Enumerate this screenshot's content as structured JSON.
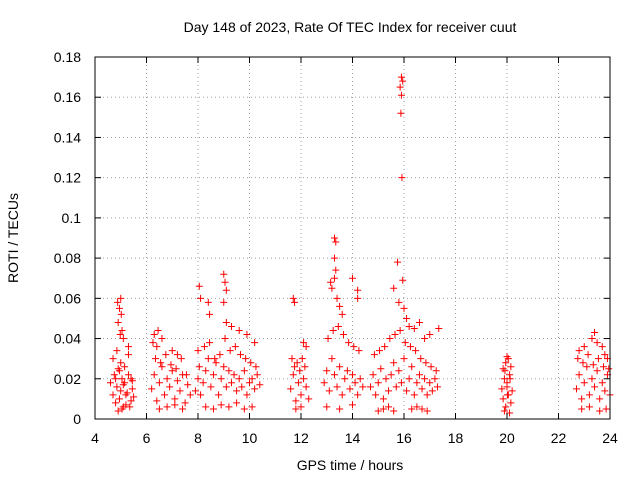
{
  "chart_data": {
    "type": "scatter",
    "title": "Day 148 of 2023, Rate Of TEC Index for receiver cuut",
    "xlabel": "GPS time / hours",
    "ylabel": "ROTI / TECUs",
    "xlim": [
      4,
      24
    ],
    "ylim": [
      0,
      0.18
    ],
    "x_ticks": [
      4,
      6,
      8,
      10,
      12,
      14,
      16,
      18,
      20,
      22,
      24
    ],
    "y_ticks": [
      0,
      0.02,
      0.04,
      0.06,
      0.08,
      0.1,
      0.12,
      0.14,
      0.16,
      0.18
    ],
    "x_tick_labels": [
      "4",
      "6",
      "8",
      "10",
      "12",
      "14",
      "16",
      "18",
      "20",
      "22",
      "24"
    ],
    "y_tick_labels": [
      "0",
      "0.02",
      "0.04",
      "0.06",
      "0.08",
      "0.1",
      "0.12",
      "0.14",
      "0.16",
      "0.18"
    ],
    "grid": true,
    "marker": "plus",
    "color": "#ff0000",
    "series": [
      {
        "x": [
          4.6,
          4.7,
          4.75,
          4.8,
          4.85,
          4.9,
          4.95,
          5.0,
          5.05,
          5.1,
          5.15,
          5.2,
          5.3,
          5.4,
          5.45,
          5.5,
          4.7,
          4.85,
          5.0,
          5.15,
          5.3,
          4.9,
          5.05,
          5.2,
          5.35,
          4.8,
          4.95,
          5.1,
          5.25,
          5.45,
          4.88,
          4.95,
          5.0,
          5.02,
          4.9,
          5.05,
          4.98,
          5.1,
          5.3,
          5.4,
          6.2,
          6.3,
          6.4,
          6.5,
          6.6,
          6.7,
          6.8,
          6.9,
          7.0,
          7.1,
          7.2,
          7.3,
          7.4,
          7.5,
          7.6,
          7.7,
          6.35,
          6.55,
          6.75,
          6.95,
          7.15,
          7.35,
          7.55,
          6.3,
          6.45,
          6.6,
          6.25,
          6.4,
          7.0,
          7.2,
          6.5,
          6.8,
          7.1,
          7.4,
          7.9,
          8.0,
          8.05,
          8.1,
          8.2,
          8.3,
          8.4,
          8.5,
          8.6,
          8.7,
          8.8,
          8.9,
          9.0,
          9.1,
          9.2,
          9.3,
          9.4,
          9.5,
          9.6,
          9.7,
          9.8,
          9.9,
          10.0,
          10.1,
          10.2,
          10.3,
          10.4,
          8.0,
          8.25,
          8.45,
          8.65,
          8.85,
          9.05,
          9.25,
          9.45,
          9.65,
          9.85,
          10.05,
          10.25,
          8.05,
          8.1,
          8.4,
          8.45,
          9.0,
          9.05,
          9.1,
          9.0,
          9.1,
          9.3,
          9.6,
          9.9,
          10.2,
          8.3,
          8.6,
          8.9,
          9.2,
          9.5,
          9.8,
          10.1,
          11.6,
          11.7,
          11.8,
          11.9,
          12.0,
          12.1,
          12.2,
          12.3,
          11.65,
          11.75,
          11.85,
          11.95,
          12.05,
          12.15,
          11.7,
          11.75,
          12.1,
          12.2,
          11.8,
          12.0,
          12.9,
          13.0,
          13.1,
          13.2,
          13.3,
          13.4,
          13.5,
          13.6,
          13.7,
          13.8,
          13.9,
          14.0,
          14.1,
          14.2,
          14.3,
          14.4,
          13.05,
          13.25,
          13.45,
          13.65,
          13.85,
          14.05,
          14.25,
          13.15,
          13.2,
          13.3,
          13.35,
          13.3,
          13.35,
          13.3,
          13.4,
          13.5,
          13.6,
          14.0,
          14.2,
          14.2,
          13.0,
          13.5,
          14.0,
          14.7,
          14.8,
          14.9,
          15.0,
          15.1,
          15.2,
          15.3,
          15.4,
          15.5,
          15.6,
          15.7,
          15.8,
          15.9,
          16.0,
          16.1,
          16.2,
          16.3,
          16.4,
          16.5,
          16.6,
          16.7,
          16.8,
          16.9,
          17.0,
          17.1,
          17.2,
          17.3,
          14.85,
          15.05,
          15.25,
          15.45,
          15.65,
          15.85,
          16.05,
          16.25,
          16.45,
          16.65,
          16.85,
          17.05,
          17.25,
          15.9,
          15.95,
          15.85,
          15.9,
          15.88,
          15.92,
          15.75,
          15.95,
          15.6,
          15.8,
          16.0,
          16.1,
          16.2,
          16.4,
          16.6,
          16.8,
          17.0,
          17.35,
          15.0,
          15.2,
          15.4,
          15.6,
          16.3,
          16.5,
          16.7,
          16.9,
          19.8,
          19.85,
          19.9,
          19.95,
          20.0,
          20.05,
          20.1,
          20.15,
          20.2,
          19.85,
          19.95,
          20.05,
          20.15,
          19.9,
          20.0,
          20.1,
          19.92,
          20.02,
          20.12,
          20.0,
          22.7,
          22.8,
          22.9,
          23.0,
          23.1,
          23.2,
          23.3,
          23.4,
          23.5,
          23.6,
          23.7,
          23.8,
          23.9,
          24.0,
          22.75,
          22.95,
          23.15,
          23.35,
          23.55,
          23.75,
          23.95,
          22.8,
          23.0,
          23.3,
          23.4,
          23.5,
          23.7,
          23.8,
          23.9,
          22.9,
          23.2,
          23.6,
          23.85
        ],
        "y": [
          0.018,
          0.012,
          0.022,
          0.008,
          0.016,
          0.025,
          0.01,
          0.014,
          0.02,
          0.006,
          0.018,
          0.012,
          0.022,
          0.009,
          0.015,
          0.011,
          0.03,
          0.034,
          0.028,
          0.026,
          0.032,
          0.004,
          0.005,
          0.007,
          0.006,
          0.02,
          0.024,
          0.017,
          0.013,
          0.019,
          0.058,
          0.055,
          0.06,
          0.052,
          0.048,
          0.044,
          0.042,
          0.04,
          0.036,
          0.02,
          0.015,
          0.022,
          0.009,
          0.018,
          0.026,
          0.012,
          0.02,
          0.016,
          0.024,
          0.01,
          0.019,
          0.014,
          0.022,
          0.008,
          0.017,
          0.012,
          0.03,
          0.028,
          0.032,
          0.027,
          0.025,
          0.03,
          0.022,
          0.042,
          0.044,
          0.04,
          0.038,
          0.036,
          0.034,
          0.032,
          0.005,
          0.006,
          0.007,
          0.005,
          0.014,
          0.02,
          0.026,
          0.012,
          0.018,
          0.024,
          0.03,
          0.016,
          0.022,
          0.028,
          0.012,
          0.02,
          0.026,
          0.016,
          0.024,
          0.018,
          0.022,
          0.014,
          0.02,
          0.016,
          0.024,
          0.012,
          0.018,
          0.02,
          0.015,
          0.022,
          0.017,
          0.034,
          0.036,
          0.038,
          0.03,
          0.032,
          0.04,
          0.034,
          0.036,
          0.032,
          0.03,
          0.028,
          0.026,
          0.066,
          0.06,
          0.058,
          0.052,
          0.072,
          0.068,
          0.064,
          0.058,
          0.048,
          0.046,
          0.044,
          0.042,
          0.038,
          0.006,
          0.005,
          0.007,
          0.006,
          0.008,
          0.005,
          0.006,
          0.015,
          0.022,
          0.009,
          0.018,
          0.012,
          0.02,
          0.016,
          0.01,
          0.03,
          0.026,
          0.028,
          0.024,
          0.03,
          0.026,
          0.06,
          0.058,
          0.038,
          0.036,
          0.005,
          0.006,
          0.018,
          0.024,
          0.014,
          0.03,
          0.022,
          0.016,
          0.026,
          0.012,
          0.02,
          0.024,
          0.015,
          0.022,
          0.018,
          0.012,
          0.02,
          0.016,
          0.04,
          0.044,
          0.046,
          0.042,
          0.038,
          0.036,
          0.034,
          0.068,
          0.065,
          0.09,
          0.088,
          0.08,
          0.074,
          0.07,
          0.06,
          0.056,
          0.052,
          0.07,
          0.064,
          0.06,
          0.006,
          0.005,
          0.007,
          0.016,
          0.022,
          0.012,
          0.018,
          0.025,
          0.01,
          0.02,
          0.014,
          0.022,
          0.028,
          0.016,
          0.024,
          0.018,
          0.03,
          0.014,
          0.02,
          0.026,
          0.012,
          0.018,
          0.022,
          0.015,
          0.02,
          0.012,
          0.018,
          0.014,
          0.02,
          0.016,
          0.032,
          0.034,
          0.036,
          0.04,
          0.042,
          0.044,
          0.038,
          0.036,
          0.034,
          0.03,
          0.028,
          0.026,
          0.024,
          0.17,
          0.168,
          0.165,
          0.161,
          0.152,
          0.12,
          0.078,
          0.069,
          0.065,
          0.058,
          0.055,
          0.05,
          0.046,
          0.045,
          0.048,
          0.04,
          0.042,
          0.045,
          0.004,
          0.005,
          0.006,
          0.004,
          0.005,
          0.006,
          0.005,
          0.004,
          0.015,
          0.01,
          0.02,
          0.006,
          0.018,
          0.012,
          0.022,
          0.008,
          0.014,
          0.025,
          0.028,
          0.03,
          0.026,
          0.004,
          0.016,
          0.003,
          0.024,
          0.012,
          0.02,
          0.031,
          0.015,
          0.022,
          0.01,
          0.018,
          0.026,
          0.012,
          0.02,
          0.016,
          0.024,
          0.01,
          0.018,
          0.014,
          0.022,
          0.012,
          0.03,
          0.028,
          0.032,
          0.027,
          0.03,
          0.026,
          0.025,
          0.034,
          0.036,
          0.04,
          0.043,
          0.038,
          0.036,
          0.032,
          0.03,
          0.005,
          0.006,
          0.004,
          0.005
        ]
      }
    ]
  }
}
